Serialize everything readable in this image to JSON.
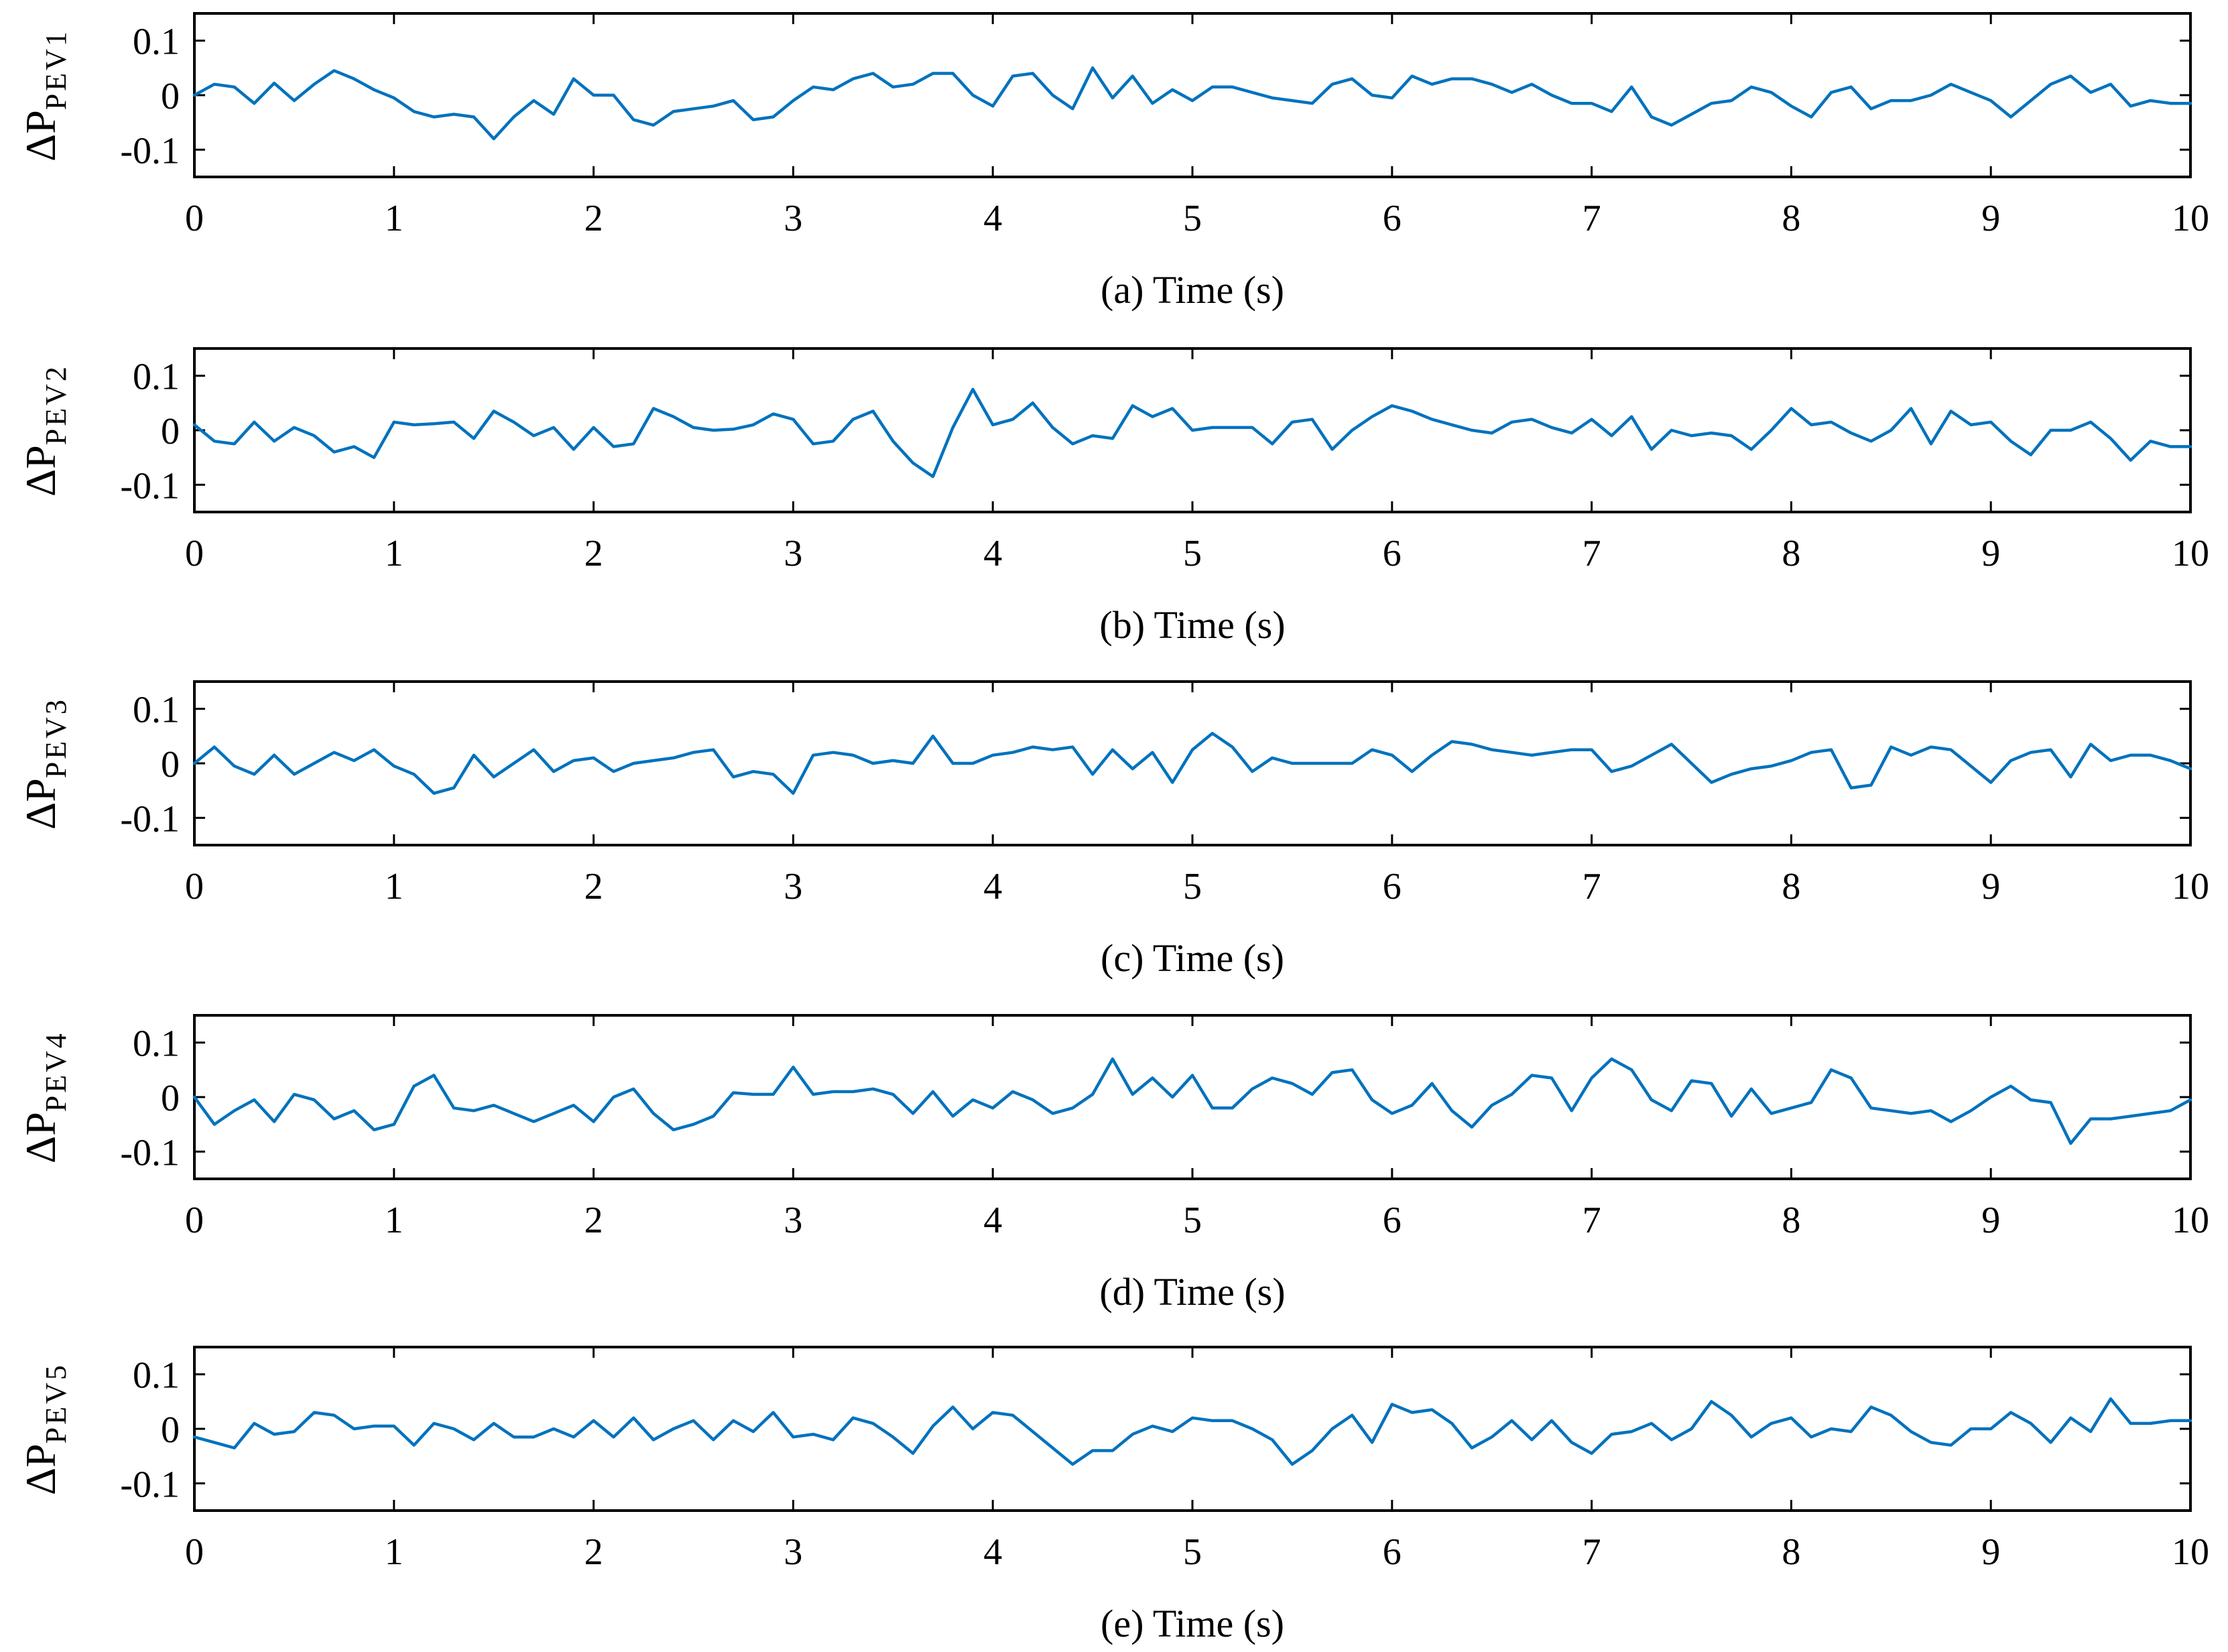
{
  "colors": {
    "series": "#0072BD",
    "axes": "#000000",
    "background": "#FFFFFF"
  },
  "chart_data": [
    {
      "type": "line",
      "panel": "a",
      "xlabel": "(a) Time (s)",
      "ylabel": "ΔP",
      "ylabel_sub": "PEV1",
      "xlim": [
        0,
        10
      ],
      "ylim": [
        -0.15,
        0.15
      ],
      "xticks": [
        0,
        1,
        2,
        3,
        4,
        5,
        6,
        7,
        8,
        9,
        10
      ],
      "yticks": [
        -0.1,
        0,
        0.1
      ],
      "ytick_labels": [
        "-0.1",
        "0",
        "0.1"
      ],
      "grid": false,
      "x": [
        0,
        0.1,
        0.2,
        0.3,
        0.4,
        0.5,
        0.6,
        0.7,
        0.8,
        0.9,
        1.0,
        1.1,
        1.2,
        1.3,
        1.4,
        1.5,
        1.6,
        1.7,
        1.8,
        1.9,
        2.0,
        2.1,
        2.2,
        2.3,
        2.4,
        2.5,
        2.6,
        2.7,
        2.8,
        2.9,
        3.0,
        3.1,
        3.2,
        3.3,
        3.4,
        3.5,
        3.6,
        3.7,
        3.8,
        3.9,
        4.0,
        4.1,
        4.2,
        4.3,
        4.4,
        4.5,
        4.6,
        4.7,
        4.8,
        4.9,
        5.0,
        5.1,
        5.2,
        5.3,
        5.4,
        5.5,
        5.6,
        5.7,
        5.8,
        5.9,
        6.0,
        6.1,
        6.2,
        6.3,
        6.4,
        6.5,
        6.6,
        6.7,
        6.8,
        6.9,
        7.0,
        7.1,
        7.2,
        7.3,
        7.4,
        7.5,
        7.6,
        7.7,
        7.8,
        7.9,
        8.0,
        8.1,
        8.2,
        8.3,
        8.4,
        8.5,
        8.6,
        8.7,
        8.8,
        8.9,
        9.0,
        9.1,
        9.2,
        9.3,
        9.4,
        9.5,
        9.6,
        9.7,
        9.8,
        9.9,
        10.0
      ],
      "y": [
        0.0,
        0.02,
        0.015,
        -0.015,
        0.022,
        -0.01,
        0.02,
        0.045,
        0.03,
        0.01,
        -0.005,
        -0.03,
        -0.04,
        -0.035,
        -0.04,
        -0.08,
        -0.04,
        -0.01,
        -0.035,
        0.03,
        0.0,
        0.0,
        -0.045,
        -0.055,
        -0.03,
        -0.025,
        -0.02,
        -0.01,
        -0.045,
        -0.04,
        -0.01,
        0.015,
        0.01,
        0.03,
        0.04,
        0.015,
        0.02,
        0.04,
        0.04,
        0.0,
        -0.02,
        0.035,
        0.04,
        0.0,
        -0.025,
        0.05,
        -0.005,
        0.035,
        -0.015,
        0.01,
        -0.01,
        0.015,
        0.015,
        0.005,
        -0.005,
        -0.01,
        -0.015,
        0.02,
        0.03,
        0.0,
        -0.005,
        0.035,
        0.02,
        0.03,
        0.03,
        0.02,
        0.005,
        0.02,
        0.0,
        -0.015,
        -0.015,
        -0.03,
        0.015,
        -0.04,
        -0.055,
        -0.035,
        -0.015,
        -0.01,
        0.015,
        0.005,
        -0.02,
        -0.04,
        0.005,
        0.015,
        -0.025,
        -0.01,
        -0.01,
        0.0,
        0.02,
        0.005,
        -0.01,
        -0.04,
        -0.01,
        0.02,
        0.035,
        0.005,
        0.02,
        -0.02,
        -0.01,
        -0.015,
        -0.015
      ]
    },
    {
      "type": "line",
      "panel": "b",
      "xlabel": "(b) Time (s)",
      "ylabel": "ΔP",
      "ylabel_sub": "PEV2",
      "xlim": [
        0,
        10
      ],
      "ylim": [
        -0.15,
        0.15
      ],
      "xticks": [
        0,
        1,
        2,
        3,
        4,
        5,
        6,
        7,
        8,
        9,
        10
      ],
      "yticks": [
        -0.1,
        0,
        0.1
      ],
      "ytick_labels": [
        "-0.1",
        "0",
        "0.1"
      ],
      "grid": false,
      "x": [
        0,
        0.1,
        0.2,
        0.3,
        0.4,
        0.5,
        0.6,
        0.7,
        0.8,
        0.9,
        1.0,
        1.1,
        1.2,
        1.3,
        1.4,
        1.5,
        1.6,
        1.7,
        1.8,
        1.9,
        2.0,
        2.1,
        2.2,
        2.3,
        2.4,
        2.5,
        2.6,
        2.7,
        2.8,
        2.9,
        3.0,
        3.1,
        3.2,
        3.3,
        3.4,
        3.5,
        3.6,
        3.7,
        3.8,
        3.9,
        4.0,
        4.1,
        4.2,
        4.3,
        4.4,
        4.5,
        4.6,
        4.7,
        4.8,
        4.9,
        5.0,
        5.1,
        5.2,
        5.3,
        5.4,
        5.5,
        5.6,
        5.7,
        5.8,
        5.9,
        6.0,
        6.1,
        6.2,
        6.3,
        6.4,
        6.5,
        6.6,
        6.7,
        6.8,
        6.9,
        7.0,
        7.1,
        7.2,
        7.3,
        7.4,
        7.5,
        7.6,
        7.7,
        7.8,
        7.9,
        8.0,
        8.1,
        8.2,
        8.3,
        8.4,
        8.5,
        8.6,
        8.7,
        8.8,
        8.9,
        9.0,
        9.1,
        9.2,
        9.3,
        9.4,
        9.5,
        9.6,
        9.7,
        9.8,
        9.9,
        10.0
      ],
      "y": [
        0.01,
        -0.02,
        -0.025,
        0.015,
        -0.02,
        0.005,
        -0.01,
        -0.04,
        -0.03,
        -0.05,
        0.015,
        0.01,
        0.012,
        0.015,
        -0.015,
        0.035,
        0.015,
        -0.01,
        0.005,
        -0.035,
        0.005,
        -0.03,
        -0.025,
        0.04,
        0.025,
        0.005,
        0.0,
        0.002,
        0.01,
        0.03,
        0.02,
        -0.025,
        -0.02,
        0.02,
        0.035,
        -0.02,
        -0.06,
        -0.085,
        0.005,
        0.075,
        0.01,
        0.02,
        0.05,
        0.005,
        -0.025,
        -0.01,
        -0.015,
        0.045,
        0.025,
        0.04,
        0.0,
        0.005,
        0.005,
        0.005,
        -0.025,
        0.015,
        0.02,
        -0.035,
        0.0,
        0.025,
        0.045,
        0.035,
        0.02,
        0.01,
        0.0,
        -0.005,
        0.015,
        0.02,
        0.005,
        -0.005,
        0.02,
        -0.01,
        0.025,
        -0.035,
        0.0,
        -0.01,
        -0.005,
        -0.01,
        -0.035,
        0.0,
        0.04,
        0.01,
        0.015,
        -0.005,
        -0.02,
        0.0,
        0.04,
        -0.025,
        0.035,
        0.01,
        0.015,
        -0.02,
        -0.045,
        0.0,
        0.0,
        0.015,
        -0.015,
        -0.055,
        -0.02,
        -0.03,
        -0.03
      ]
    },
    {
      "type": "line",
      "panel": "c",
      "xlabel": "(c) Time (s)",
      "ylabel": "ΔP",
      "ylabel_sub": "PEV3",
      "xlim": [
        0,
        10
      ],
      "ylim": [
        -0.15,
        0.15
      ],
      "xticks": [
        0,
        1,
        2,
        3,
        4,
        5,
        6,
        7,
        8,
        9,
        10
      ],
      "yticks": [
        -0.1,
        0,
        0.1
      ],
      "ytick_labels": [
        "-0.1",
        "0",
        "0.1"
      ],
      "grid": false,
      "x": [
        0,
        0.1,
        0.2,
        0.3,
        0.4,
        0.5,
        0.6,
        0.7,
        0.8,
        0.9,
        1.0,
        1.1,
        1.2,
        1.3,
        1.4,
        1.5,
        1.6,
        1.7,
        1.8,
        1.9,
        2.0,
        2.1,
        2.2,
        2.3,
        2.4,
        2.5,
        2.6,
        2.7,
        2.8,
        2.9,
        3.0,
        3.1,
        3.2,
        3.3,
        3.4,
        3.5,
        3.6,
        3.7,
        3.8,
        3.9,
        4.0,
        4.1,
        4.2,
        4.3,
        4.4,
        4.5,
        4.6,
        4.7,
        4.8,
        4.9,
        5.0,
        5.1,
        5.2,
        5.3,
        5.4,
        5.5,
        5.6,
        5.7,
        5.8,
        5.9,
        6.0,
        6.1,
        6.2,
        6.3,
        6.4,
        6.5,
        6.6,
        6.7,
        6.8,
        6.9,
        7.0,
        7.1,
        7.2,
        7.3,
        7.4,
        7.5,
        7.6,
        7.7,
        7.8,
        7.9,
        8.0,
        8.1,
        8.2,
        8.3,
        8.4,
        8.5,
        8.6,
        8.7,
        8.8,
        8.9,
        9.0,
        9.1,
        9.2,
        9.3,
        9.4,
        9.5,
        9.6,
        9.7,
        9.8,
        9.9,
        10.0
      ],
      "y": [
        0.0,
        0.03,
        -0.005,
        -0.02,
        0.015,
        -0.02,
        0.0,
        0.02,
        0.005,
        0.025,
        -0.005,
        -0.02,
        -0.055,
        -0.045,
        0.015,
        -0.025,
        0.0,
        0.025,
        -0.015,
        0.005,
        0.01,
        -0.015,
        0.0,
        0.005,
        0.01,
        0.02,
        0.025,
        -0.025,
        -0.015,
        -0.02,
        -0.055,
        0.015,
        0.02,
        0.015,
        0.0,
        0.005,
        0.0,
        0.05,
        0.0,
        0.0,
        0.015,
        0.02,
        0.03,
        0.025,
        0.03,
        -0.02,
        0.025,
        -0.01,
        0.02,
        -0.035,
        0.025,
        0.055,
        0.03,
        -0.015,
        0.01,
        0.0,
        0.0,
        0.0,
        0.0,
        0.025,
        0.015,
        -0.015,
        0.015,
        0.04,
        0.035,
        0.025,
        0.02,
        0.015,
        0.02,
        0.025,
        0.025,
        -0.015,
        -0.005,
        0.015,
        0.035,
        0.0,
        -0.035,
        -0.02,
        -0.01,
        -0.005,
        0.005,
        0.02,
        0.025,
        -0.045,
        -0.04,
        0.03,
        0.015,
        0.03,
        0.025,
        -0.005,
        -0.035,
        0.005,
        0.02,
        0.025,
        -0.025,
        0.035,
        0.005,
        0.015,
        0.015,
        0.005,
        -0.01
      ]
    },
    {
      "type": "line",
      "panel": "d",
      "xlabel": "(d) Time (s)",
      "ylabel": "ΔP",
      "ylabel_sub": "PEV4",
      "xlim": [
        0,
        10
      ],
      "ylim": [
        -0.15,
        0.15
      ],
      "xticks": [
        0,
        1,
        2,
        3,
        4,
        5,
        6,
        7,
        8,
        9,
        10
      ],
      "yticks": [
        -0.1,
        0,
        0.1
      ],
      "ytick_labels": [
        "-0.1",
        "0",
        "0.1"
      ],
      "grid": false,
      "x": [
        0,
        0.1,
        0.2,
        0.3,
        0.4,
        0.5,
        0.6,
        0.7,
        0.8,
        0.9,
        1.0,
        1.1,
        1.2,
        1.3,
        1.4,
        1.5,
        1.6,
        1.7,
        1.8,
        1.9,
        2.0,
        2.1,
        2.2,
        2.3,
        2.4,
        2.5,
        2.6,
        2.7,
        2.8,
        2.9,
        3.0,
        3.1,
        3.2,
        3.3,
        3.4,
        3.5,
        3.6,
        3.7,
        3.8,
        3.9,
        4.0,
        4.1,
        4.2,
        4.3,
        4.4,
        4.5,
        4.6,
        4.7,
        4.8,
        4.9,
        5.0,
        5.1,
        5.2,
        5.3,
        5.4,
        5.5,
        5.6,
        5.7,
        5.8,
        5.9,
        6.0,
        6.1,
        6.2,
        6.3,
        6.4,
        6.5,
        6.6,
        6.7,
        6.8,
        6.9,
        7.0,
        7.1,
        7.2,
        7.3,
        7.4,
        7.5,
        7.6,
        7.7,
        7.8,
        7.9,
        8.0,
        8.1,
        8.2,
        8.3,
        8.4,
        8.5,
        8.6,
        8.7,
        8.8,
        8.9,
        9.0,
        9.1,
        9.2,
        9.3,
        9.4,
        9.5,
        9.6,
        9.7,
        9.8,
        9.9,
        10.0
      ],
      "y": [
        0.0,
        -0.05,
        -0.025,
        -0.005,
        -0.045,
        0.005,
        -0.005,
        -0.04,
        -0.025,
        -0.06,
        -0.05,
        0.02,
        0.04,
        -0.02,
        -0.025,
        -0.015,
        -0.03,
        -0.045,
        -0.03,
        -0.015,
        -0.045,
        0.0,
        0.015,
        -0.03,
        -0.06,
        -0.05,
        -0.035,
        0.008,
        0.005,
        0.005,
        0.055,
        0.005,
        0.01,
        0.01,
        0.015,
        0.005,
        -0.03,
        0.01,
        -0.035,
        -0.005,
        -0.02,
        0.01,
        -0.005,
        -0.03,
        -0.02,
        0.005,
        0.07,
        0.005,
        0.035,
        0.0,
        0.04,
        -0.02,
        -0.02,
        0.015,
        0.035,
        0.025,
        0.005,
        0.045,
        0.05,
        -0.005,
        -0.03,
        -0.015,
        0.025,
        -0.025,
        -0.055,
        -0.015,
        0.005,
        0.04,
        0.035,
        -0.025,
        0.035,
        0.07,
        0.05,
        -0.005,
        -0.025,
        0.03,
        0.025,
        -0.035,
        0.015,
        -0.03,
        -0.02,
        -0.01,
        0.05,
        0.035,
        -0.02,
        -0.025,
        -0.03,
        -0.025,
        -0.045,
        -0.025,
        0.0,
        0.02,
        -0.005,
        -0.01,
        -0.085,
        -0.04,
        -0.04,
        -0.035,
        -0.03,
        -0.025,
        -0.005
      ]
    },
    {
      "type": "line",
      "panel": "e",
      "xlabel": "(e) Time (s)",
      "ylabel": "ΔP",
      "ylabel_sub": "PEV5",
      "xlim": [
        0,
        10
      ],
      "ylim": [
        -0.15,
        0.15
      ],
      "xticks": [
        0,
        1,
        2,
        3,
        4,
        5,
        6,
        7,
        8,
        9,
        10
      ],
      "yticks": [
        -0.1,
        0,
        0.1
      ],
      "ytick_labels": [
        "-0.1",
        "0",
        "0.1"
      ],
      "grid": false,
      "x": [
        0,
        0.1,
        0.2,
        0.3,
        0.4,
        0.5,
        0.6,
        0.7,
        0.8,
        0.9,
        1.0,
        1.1,
        1.2,
        1.3,
        1.4,
        1.5,
        1.6,
        1.7,
        1.8,
        1.9,
        2.0,
        2.1,
        2.2,
        2.3,
        2.4,
        2.5,
        2.6,
        2.7,
        2.8,
        2.9,
        3.0,
        3.1,
        3.2,
        3.3,
        3.4,
        3.5,
        3.6,
        3.7,
        3.8,
        3.9,
        4.0,
        4.1,
        4.2,
        4.3,
        4.4,
        4.5,
        4.6,
        4.7,
        4.8,
        4.9,
        5.0,
        5.1,
        5.2,
        5.3,
        5.4,
        5.5,
        5.6,
        5.7,
        5.8,
        5.9,
        6.0,
        6.1,
        6.2,
        6.3,
        6.4,
        6.5,
        6.6,
        6.7,
        6.8,
        6.9,
        7.0,
        7.1,
        7.2,
        7.3,
        7.4,
        7.5,
        7.6,
        7.7,
        7.8,
        7.9,
        8.0,
        8.1,
        8.2,
        8.3,
        8.4,
        8.5,
        8.6,
        8.7,
        8.8,
        8.9,
        9.0,
        9.1,
        9.2,
        9.3,
        9.4,
        9.5,
        9.6,
        9.7,
        9.8,
        9.9,
        10.0
      ],
      "y": [
        -0.015,
        -0.025,
        -0.035,
        0.01,
        -0.01,
        -0.005,
        0.03,
        0.025,
        0.0,
        0.005,
        0.005,
        -0.03,
        0.01,
        0.0,
        -0.02,
        0.01,
        -0.015,
        -0.015,
        0.0,
        -0.015,
        0.015,
        -0.015,
        0.02,
        -0.02,
        0.0,
        0.015,
        -0.02,
        0.015,
        -0.005,
        0.03,
        -0.015,
        -0.01,
        -0.02,
        0.02,
        0.01,
        -0.015,
        -0.045,
        0.005,
        0.04,
        0.0,
        0.03,
        0.025,
        -0.005,
        -0.035,
        -0.065,
        -0.04,
        -0.04,
        -0.01,
        0.005,
        -0.005,
        0.02,
        0.015,
        0.015,
        0.0,
        -0.02,
        -0.065,
        -0.04,
        0.0,
        0.025,
        -0.025,
        0.045,
        0.03,
        0.035,
        0.01,
        -0.035,
        -0.015,
        0.015,
        -0.02,
        0.015,
        -0.025,
        -0.045,
        -0.01,
        -0.005,
        0.01,
        -0.02,
        0.0,
        0.05,
        0.025,
        -0.015,
        0.01,
        0.02,
        -0.015,
        0.0,
        -0.005,
        0.04,
        0.025,
        -0.005,
        -0.025,
        -0.03,
        0.0,
        0.0,
        0.03,
        0.01,
        -0.025,
        0.02,
        -0.005,
        0.055,
        0.01,
        0.01,
        0.015,
        0.015
      ]
    }
  ]
}
